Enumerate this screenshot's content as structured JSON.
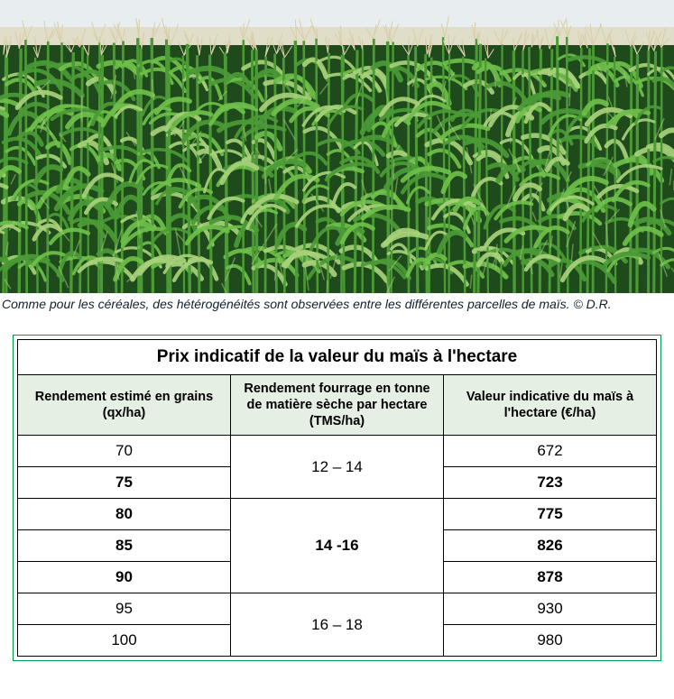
{
  "photo": {
    "caption": "Comme pour les céréales, des hétérogénéités sont observées entre les différentes parcelles de maïs.  © D.R.",
    "alt": "cornfield-photo",
    "sky_color": "#e8eef0",
    "tassel_color": "#d8cfa8",
    "leaf_colors": [
      "#2f6b28",
      "#4b9a36",
      "#6fbf4a",
      "#a7d07a",
      "#1e4a1c"
    ]
  },
  "table": {
    "title": "Prix indicatif de la valeur du maïs à l'hectare",
    "header_bg": "#e6efe3",
    "border_color": "#009a4a",
    "columns": [
      "Rendement estimé en grains (qx/ha)",
      "Rendement fourrage en tonne de matière sèche par hectare (TMS/ha)",
      "Valeur indicative du maïs à l'hectare (€/ha)"
    ],
    "col_widths_pct": [
      33.3,
      33.4,
      33.3
    ],
    "groups": [
      {
        "mid_label": "12 – 14",
        "bold": false,
        "rows": [
          {
            "yield": "70",
            "value": "672",
            "bold": false
          },
          {
            "yield": "75",
            "value": "723",
            "bold": true
          }
        ]
      },
      {
        "mid_label": "14 -16",
        "bold": true,
        "rows": [
          {
            "yield": "80",
            "value": "775",
            "bold": true
          },
          {
            "yield": "85",
            "value": "826",
            "bold": true
          },
          {
            "yield": "90",
            "value": "878",
            "bold": true
          }
        ]
      },
      {
        "mid_label": "16 – 18",
        "bold": false,
        "rows": [
          {
            "yield": "95",
            "value": "930",
            "bold": false
          },
          {
            "yield": "100",
            "value": "980",
            "bold": false
          }
        ]
      }
    ]
  }
}
